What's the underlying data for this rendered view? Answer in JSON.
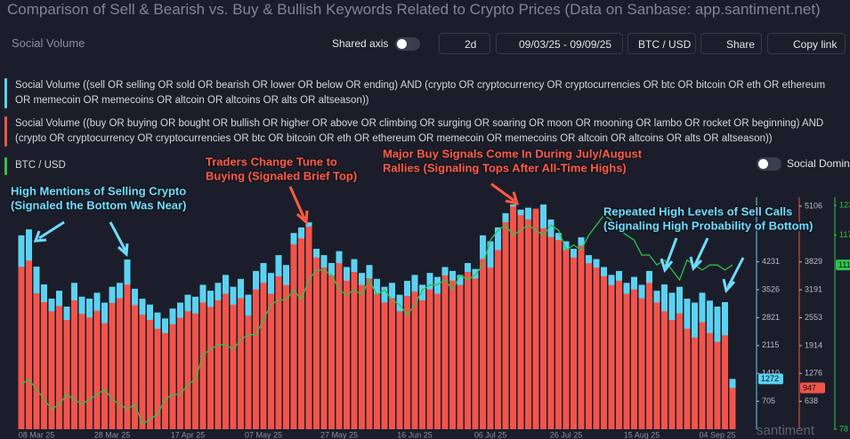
{
  "ui": {
    "panel_title": "Social Volume",
    "shared_axis": "Shared axis",
    "interval": "2d",
    "date_range": "09/03/25 - 09/09/25",
    "pair": "BTC / USD",
    "share": "Share",
    "copy_link": "Copy link",
    "social_dominance": "Social Domin",
    "watermark": "santiment"
  },
  "chart_data": {
    "type": "bar",
    "title": "Comparison of Sell & Bearish vs. Buy & Bullish Keywords Related to Crypto Prices (Data on Sanbase: app.santiment.net)",
    "categories": [
      null,
      null,
      "08 Mar 25",
      null,
      null,
      null,
      null,
      null,
      null,
      null,
      null,
      null,
      "28 Mar 25",
      null,
      null,
      null,
      null,
      null,
      null,
      null,
      null,
      null,
      "17 Apr 25",
      null,
      null,
      null,
      null,
      null,
      null,
      null,
      null,
      null,
      "07 May 25",
      null,
      null,
      null,
      null,
      null,
      null,
      null,
      null,
      null,
      "27 May 25",
      null,
      null,
      null,
      null,
      null,
      null,
      null,
      null,
      null,
      "16 Jun 25",
      null,
      null,
      null,
      null,
      null,
      null,
      null,
      null,
      null,
      "06 Jul 25",
      null,
      null,
      null,
      null,
      null,
      null,
      null,
      null,
      null,
      "26 Jul 25",
      null,
      null,
      null,
      null,
      null,
      null,
      null,
      null,
      null,
      "15 Aug 25",
      null,
      null,
      null,
      null,
      null,
      null,
      null,
      null,
      null,
      "04 Sep 25",
      null,
      null
    ],
    "series": [
      {
        "name": "Social Volume ((sell OR selling OR sold OR bearish OR lower OR below OR ending) AND (crypto OR cryptocurrency OR cryptocurrencies OR btc OR bitcoin OR eth OR ethereum OR memecoin OR memecoins OR altcoin OR altcoins OR alts OR altseason))",
        "color": "#5cd2f2",
        "axis": "y",
        "values": [
          4900,
          5050,
          4110,
          3660,
          3300,
          3500,
          3100,
          3700,
          3350,
          3300,
          3450,
          3200,
          3600,
          3700,
          4290,
          3550,
          3300,
          3150,
          2950,
          2800,
          3050,
          3200,
          3400,
          3350,
          3650,
          3500,
          3700,
          3900,
          3600,
          3800,
          3400,
          4000,
          4200,
          3950,
          4400,
          4150,
          4960,
          5100,
          5230,
          4560,
          4400,
          4200,
          4500,
          4100,
          4300,
          3950,
          4150,
          3800,
          3600,
          3700,
          3400,
          3750,
          3900,
          3650,
          3950,
          3850,
          4100,
          4000,
          3900,
          4200,
          4050,
          4900,
          4750,
          5100,
          5460,
          5680,
          5550,
          5600,
          5460,
          5680,
          5300,
          4960,
          4750,
          4560,
          4850,
          4400,
          4300,
          4100,
          3900,
          4000,
          3700,
          3850,
          3650,
          4000,
          3500,
          3660,
          3450,
          3600,
          3300,
          3200,
          3450,
          3250,
          3100,
          3212,
          1272
        ]
      },
      {
        "name": "Social Volume ((buy OR buying OR bought OR bullish OR higher OR above OR climbing OR surging OR soaring OR moon OR mooning OR lambo OR rocket OR beginning) AND (crypto OR cryptocurrency OR cryptocurrencies OR btc OR bitcoin OR eth OR ethereum OR memecoin OR memecoins OR altcoin OR altcoins OR alts OR altseason))",
        "color": "#f2544b",
        "axis": "y2",
        "values": [
          3720,
          3860,
          3110,
          2910,
          2700,
          2820,
          2500,
          2950,
          2640,
          2560,
          2710,
          2430,
          2890,
          3000,
          3310,
          2840,
          2620,
          2500,
          2300,
          2200,
          2400,
          2550,
          2700,
          2650,
          2900,
          2800,
          2950,
          3100,
          2850,
          3000,
          2600,
          3200,
          3350,
          3100,
          3500,
          3300,
          4230,
          4370,
          4640,
          3930,
          3700,
          3520,
          3800,
          3400,
          3600,
          3300,
          3450,
          3100,
          2900,
          3000,
          2700,
          3050,
          3150,
          2950,
          3200,
          3100,
          3520,
          3400,
          3300,
          3600,
          3450,
          3900,
          3700,
          4100,
          4740,
          5100,
          4900,
          4800,
          5050,
          4600,
          4400,
          4330,
          4100,
          3930,
          4200,
          3800,
          3700,
          3500,
          3300,
          3400,
          3100,
          3200,
          3000,
          3350,
          2900,
          2700,
          2500,
          2650,
          2300,
          2100,
          2450,
          2200,
          2000,
          2150,
          947
        ]
      },
      {
        "name": "BTC / USD",
        "type": "line",
        "color": "#2fc34c",
        "axis": "y3",
        "values": [
          87,
          88,
          86,
          84,
          82,
          83,
          85,
          84,
          83,
          84,
          85,
          86,
          84,
          83,
          82,
          83,
          79,
          80,
          81,
          84,
          85,
          85,
          87,
          88,
          93,
          94,
          95,
          95,
          94,
          96,
          97,
          97,
          100,
          103,
          104,
          104,
          106,
          104,
          108,
          110,
          110,
          109,
          106,
          105,
          106,
          105,
          108,
          105,
          106,
          104,
          103,
          101,
          103,
          106,
          107,
          107,
          108,
          106,
          109,
          108,
          109,
          111,
          116,
          118,
          119,
          117,
          118,
          119,
          118,
          117,
          119,
          118,
          114,
          115,
          114,
          117,
          119,
          121,
          120,
          118,
          117,
          116,
          113,
          113,
          111,
          112,
          110,
          108,
          112,
          111,
          110,
          111,
          111,
          110,
          111
        ]
      }
    ],
    "ylim": [
      0,
      5862
    ],
    "yticks": [
      705,
      1410,
      2115,
      2821,
      3526,
      4231
    ],
    "y2lim": [
      0,
      5309
    ],
    "y2ticks": [
      638,
      1276,
      1914,
      2553,
      3191,
      3829,
      5106
    ],
    "y3lim": [
      78,
      124.6
    ],
    "y3ticks": [
      78,
      117,
      123
    ],
    "grid": false,
    "annotations": [
      {
        "lines": [
          "High Mentions of Selling Crypto",
          "(Signaled the Bottom Was Near)"
        ],
        "color": "#6fdcff"
      },
      {
        "lines": [
          "Traders Change Tune to",
          "Buying (Signaled Brief Top)"
        ],
        "color": "#ff5a45"
      },
      {
        "lines": [
          "Major Buy Signals Come In During July/August",
          "Rallies (Signaling Tops After All-Time Highs)"
        ],
        "color": "#ff5a45"
      },
      {
        "lines": [
          "Repeated High Levels of Sell Calls",
          "(Signaling High Probability of Bottom)"
        ],
        "color": "#6fdcff"
      }
    ]
  }
}
